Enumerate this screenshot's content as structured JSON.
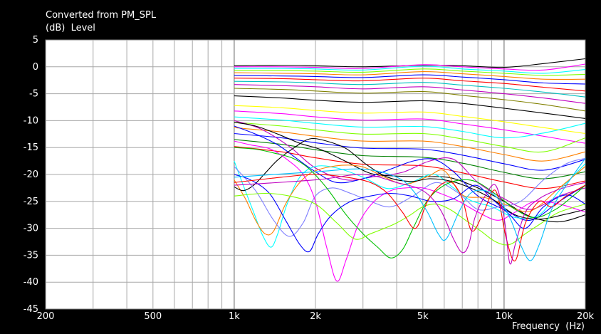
{
  "chart_data": {
    "type": "line",
    "title": "Converted from PM_SPL",
    "ylabel": "(dB)  Level",
    "xlabel": "Frequency  (Hz)",
    "x_scale": "log",
    "xlim": [
      200,
      20000
    ],
    "ylim": [
      -45,
      5
    ],
    "x_ticks": [
      200,
      500,
      1000,
      2000,
      5000,
      10000,
      20000
    ],
    "x_tick_labels": [
      "200",
      "500",
      "1k",
      "2k",
      "5k",
      "10k",
      "20k"
    ],
    "y_ticks": [
      5,
      0,
      -5,
      -10,
      -15,
      -20,
      -25,
      -30,
      -35,
      -40,
      -45
    ],
    "y_tick_labels": [
      "5",
      "0",
      "-5",
      "-10",
      "-15",
      "-20",
      "-25",
      "-30",
      "-35",
      "-40",
      "-45"
    ],
    "grid": true,
    "series": [
      {
        "color": "#000000",
        "x": [
          1000,
          1500,
          2000,
          3000,
          5000,
          7000,
          10000,
          14000,
          20000
        ],
        "y": [
          0.2,
          0.3,
          0.2,
          0,
          0.3,
          0.2,
          -0.1,
          0.6,
          1.5
        ]
      },
      {
        "color": "#ff00ff",
        "x": [
          1000,
          1500,
          2000,
          3000,
          5000,
          7000,
          10000,
          14000,
          20000
        ],
        "y": [
          0,
          0,
          -0.1,
          -0.3,
          0.4,
          0,
          -0.4,
          -0.6,
          0.5
        ]
      },
      {
        "color": "#00ffff",
        "x": [
          1000,
          1500,
          2000,
          3000,
          5000,
          7000,
          10000,
          14000,
          20000
        ],
        "y": [
          -0.3,
          -0.3,
          -0.4,
          -0.6,
          0.1,
          -0.4,
          -0.8,
          -1.2,
          -0.5
        ]
      },
      {
        "color": "#80ff00",
        "x": [
          1000,
          1500,
          2000,
          3000,
          5000,
          7000,
          10000,
          14000,
          20000
        ],
        "y": [
          -0.7,
          -0.7,
          -0.8,
          -1,
          -0.4,
          -0.8,
          -1.2,
          -1.6,
          -1.4
        ]
      },
      {
        "color": "#ff8000",
        "x": [
          1000,
          1500,
          2000,
          3000,
          5000,
          7000,
          10000,
          14000,
          20000
        ],
        "y": [
          -1.1,
          -1.2,
          -1.3,
          -1.5,
          -0.9,
          -1.3,
          -1.8,
          -2.3,
          -2.3
        ]
      },
      {
        "color": "#0000ff",
        "x": [
          1000,
          1500,
          2000,
          3000,
          5000,
          7000,
          10000,
          14000,
          20000
        ],
        "y": [
          -1.6,
          -1.7,
          -1.8,
          -2,
          -1.5,
          -1.9,
          -2.4,
          -3,
          -3.2
        ]
      },
      {
        "color": "#ff0000",
        "x": [
          1000,
          1500,
          2000,
          3000,
          5000,
          7000,
          10000,
          14000,
          20000
        ],
        "y": [
          -2.1,
          -2.2,
          -2.4,
          -2.6,
          -2.1,
          -2.6,
          -3.1,
          -3.8,
          -4.5
        ]
      },
      {
        "color": "#00c0c0",
        "x": [
          1000,
          1500,
          2000,
          3000,
          5000,
          7000,
          10000,
          14000,
          20000
        ],
        "y": [
          -2.7,
          -2.8,
          -3,
          -3.3,
          -2.9,
          -3.4,
          -4,
          -4.7,
          -5.6
        ]
      },
      {
        "color": "#c000c0",
        "x": [
          1000,
          1500,
          2000,
          3000,
          5000,
          7000,
          10000,
          14000,
          20000
        ],
        "y": [
          -3.3,
          -3.5,
          -3.7,
          -4.1,
          -3.7,
          -4.3,
          -5,
          -5.8,
          -6.8
        ]
      },
      {
        "color": "#808000",
        "x": [
          1000,
          1500,
          2000,
          3000,
          5000,
          7000,
          10000,
          14000,
          20000
        ],
        "y": [
          -4,
          -4.2,
          -4.5,
          -4.9,
          -4.6,
          -5.3,
          -6.1,
          -7,
          -8.2
        ]
      },
      {
        "color": "#000000",
        "x": [
          1000,
          1500,
          2000,
          3000,
          5000,
          7000,
          10000,
          14000,
          20000
        ],
        "y": [
          -5.4,
          -5.8,
          -6.2,
          -6.6,
          -6.3,
          -6.8,
          -7.7,
          -8.6,
          -9.6
        ]
      },
      {
        "color": "#ffff00",
        "x": [
          1000,
          1500,
          2000,
          3000,
          5000,
          7000,
          10000,
          14000,
          20000
        ],
        "y": [
          -7.2,
          -7.6,
          -8.1,
          -8.6,
          -8.4,
          -9.2,
          -10.2,
          -11.3,
          -12.4
        ]
      },
      {
        "color": "#ff00ff",
        "x": [
          1000,
          1500,
          2000,
          3000,
          5000,
          7000,
          10000,
          14000,
          20000
        ],
        "y": [
          -8.2,
          -8.7,
          -9.3,
          -9.9,
          -9.7,
          -10.6,
          -11.7,
          -12.9,
          -14.2
        ]
      },
      {
        "color": "#00ffff",
        "x": [
          1000,
          1500,
          2000,
          3000,
          5000,
          7000,
          10000,
          14000,
          20000
        ],
        "y": [
          -9.3,
          -9.9,
          -10.5,
          -11.2,
          -11.1,
          -12,
          -13.2,
          -12.3,
          -10.5
        ]
      },
      {
        "color": "#80ff00",
        "x": [
          1000,
          1500,
          2000,
          3000,
          5000,
          7000,
          10000,
          14000,
          20000
        ],
        "y": [
          -10.3,
          -11,
          -11.7,
          -12.5,
          -12.4,
          -13.4,
          -14.8,
          -15.8,
          -13.2
        ]
      },
      {
        "color": "#ff8000",
        "x": [
          1000,
          1500,
          2000,
          3000,
          5000,
          7000,
          10000,
          14000,
          20000
        ],
        "y": [
          -11.3,
          -12.1,
          -12.9,
          -13.8,
          -13.8,
          -14.8,
          -16.3,
          -17.5,
          -15.8
        ]
      },
      {
        "color": "#0000ff",
        "x": [
          1000,
          1500,
          2000,
          3000,
          5000,
          7000,
          10000,
          14000,
          20000
        ],
        "y": [
          -12.4,
          -13.2,
          -14.1,
          -15.1,
          -15.3,
          -16.4,
          -18,
          -19.2,
          -17.2
        ]
      },
      {
        "color": "#008000",
        "x": [
          1000,
          1500,
          2000,
          3000,
          5000,
          7000,
          10000,
          14000,
          20000
        ],
        "y": [
          -13.5,
          -14.4,
          -15.4,
          -16.5,
          -16.8,
          -17.9,
          -19.6,
          -20.8,
          -19.5
        ]
      },
      {
        "color": "#ff0000",
        "x": [
          1000,
          1500,
          2000,
          3000,
          5000,
          7000,
          10000,
          14000,
          20000
        ],
        "y": [
          -14.8,
          -15.8,
          -16.9,
          -18.1,
          -18.4,
          -19.7,
          -21.4,
          -22.6,
          -21.2
        ]
      },
      {
        "color": "#c000c0",
        "x": [
          1000,
          1250,
          1600,
          2000,
          2600,
          3300,
          4200,
          5300,
          6500,
          8000,
          10000,
          12500,
          16000,
          20000
        ],
        "y": [
          -10,
          -11.5,
          -14.8,
          -18.8,
          -21,
          -20.4,
          -19.6,
          -17.5,
          -17.2,
          -21.5,
          -24.5,
          -26.5,
          -24,
          -22.5
        ]
      },
      {
        "color": "#000000",
        "x": [
          1000,
          1200,
          1450,
          1750,
          2100,
          2600,
          3200,
          4000,
          5000,
          6300,
          8000,
          10000,
          12500,
          16000,
          20000
        ],
        "y": [
          -10.3,
          -11,
          -12.5,
          -14.2,
          -15.4,
          -17.6,
          -19.8,
          -20.3,
          -20.4,
          -20.6,
          -22.5,
          -25,
          -27.8,
          -28.8,
          -27.5
        ]
      },
      {
        "color": "#0000ff",
        "x": [
          1000,
          1200,
          1450,
          1700,
          2000,
          2400,
          3000,
          3800,
          4600,
          5500,
          6500,
          8000,
          10000,
          12500,
          16000,
          20000
        ],
        "y": [
          -11,
          -12.5,
          -14.5,
          -17,
          -19.5,
          -21.5,
          -20.8,
          -19,
          -17.5,
          -17.2,
          -19.5,
          -24,
          -26.5,
          -28.5,
          -25,
          -22
        ]
      },
      {
        "color": "#00ffff",
        "x": [
          1000,
          1080,
          1180,
          1280,
          1370,
          1450,
          1570,
          1750,
          2000,
          2400,
          3000,
          3700,
          4500,
          5500,
          6500,
          7500,
          9000,
          11000,
          13500,
          16000,
          20000
        ],
        "y": [
          -17.5,
          -22,
          -27,
          -31.5,
          -33.5,
          -31,
          -25.5,
          -20.5,
          -18.5,
          -18.8,
          -20.5,
          -22.6,
          -21.5,
          -20,
          -22.5,
          -24.8,
          -26,
          -28,
          -27.5,
          -23,
          -18
        ]
      },
      {
        "color": "#ff8000",
        "x": [
          1000,
          1100,
          1200,
          1300,
          1400,
          1550,
          1750,
          2000,
          2500,
          3000,
          3600,
          4300,
          5200,
          6000,
          7000,
          8500,
          10000,
          12500,
          16000,
          20000
        ],
        "y": [
          -21,
          -24.5,
          -28.5,
          -31,
          -30.5,
          -25.5,
          -21.5,
          -19.3,
          -18.3,
          -18.6,
          -20.5,
          -21.8,
          -20.4,
          -19.3,
          -23.8,
          -24.3,
          -25.5,
          -26.8,
          -22.5,
          -18.5
        ]
      },
      {
        "color": "#000000",
        "x": [
          1000,
          1080,
          1180,
          1300,
          1450,
          1650,
          1900,
          2200,
          2600,
          3100,
          3700,
          4500,
          5300,
          6300,
          7500,
          9000,
          11000,
          13500,
          16500,
          20000
        ],
        "y": [
          -22.3,
          -23,
          -22,
          -19.8,
          -17.3,
          -15.2,
          -13.4,
          -13.8,
          -15.2,
          -18.2,
          -20.5,
          -21.3,
          -20.8,
          -21.2,
          -22.5,
          -24.5,
          -27.5,
          -28.3,
          -27.5,
          -26.5
        ]
      },
      {
        "color": "#8080ff",
        "x": [
          1000,
          1200,
          1400,
          1600,
          1800,
          2000,
          2300,
          2700,
          3200,
          3800,
          4600,
          5600,
          6800,
          8000,
          9500,
          11500,
          14000,
          17000,
          20000
        ],
        "y": [
          -18.5,
          -23,
          -28.5,
          -31.5,
          -29,
          -24,
          -22.5,
          -23.5,
          -25,
          -26,
          -24,
          -21.5,
          -23.5,
          -26.5,
          -26,
          -25,
          -21,
          -18,
          -17
        ]
      },
      {
        "color": "#ff00ff",
        "x": [
          1000,
          1150,
          1350,
          1550,
          1800,
          2000,
          2200,
          2400,
          2600,
          2900,
          3300,
          3800,
          4300,
          5000,
          5800,
          6800,
          8000,
          9500,
          11000,
          13000,
          16000,
          20000
        ],
        "y": [
          -13.8,
          -14.5,
          -15.2,
          -17,
          -20,
          -25,
          -33.5,
          -39.8,
          -35.8,
          -29,
          -25,
          -23,
          -22.5,
          -22.5,
          -23.5,
          -25,
          -27,
          -28.5,
          -27,
          -25,
          -25.5,
          -27
        ]
      },
      {
        "color": "#00c000",
        "x": [
          1000,
          1200,
          1400,
          1650,
          1900,
          2200,
          2600,
          3000,
          3400,
          3800,
          4200,
          4600,
          5200,
          6000,
          7000,
          8000,
          9500,
          11000,
          13000,
          15500,
          18000,
          20000
        ],
        "y": [
          -15,
          -15.3,
          -16,
          -17,
          -19,
          -22.5,
          -27.5,
          -31,
          -33.5,
          -35.5,
          -34,
          -30,
          -24.8,
          -22,
          -21,
          -21.5,
          -24,
          -26.5,
          -28,
          -26.5,
          -24,
          -22
        ]
      },
      {
        "color": "#0000ff",
        "x": [
          1000,
          1150,
          1350,
          1550,
          1750,
          1900,
          2050,
          2300,
          2700,
          3200,
          3800,
          4500,
          5400,
          6500,
          7800,
          9000,
          10500,
          12000,
          14000,
          17000,
          20000
        ],
        "y": [
          -20,
          -21,
          -23.5,
          -28.5,
          -33,
          -34.3,
          -31,
          -27.5,
          -25,
          -24,
          -23.5,
          -24,
          -25,
          -24.5,
          -22,
          -24.5,
          -27.5,
          -30,
          -26,
          -23.8,
          -25.5
        ]
      },
      {
        "color": "#80ff00",
        "x": [
          1000,
          1300,
          1600,
          2000,
          2400,
          2800,
          3200,
          3600,
          4000,
          4500,
          5000,
          5600,
          6300,
          7200,
          8200,
          9300,
          10500,
          12000,
          13800,
          16000,
          20000
        ],
        "y": [
          -24,
          -23.5,
          -24,
          -25.5,
          -29,
          -32,
          -31,
          -30,
          -29,
          -27.5,
          -26,
          -25.5,
          -26.5,
          -28.5,
          -30.5,
          -32.5,
          -33,
          -31,
          -29,
          -27,
          -25.5
        ]
      },
      {
        "color": "#ff0000",
        "x": [
          1000,
          1500,
          2000,
          2600,
          3200,
          3700,
          4200,
          4700,
          5200,
          5800,
          6400,
          7000,
          7600,
          8400,
          9300,
          10200,
          11000,
          12000,
          13500,
          15000,
          17000,
          20000
        ],
        "y": [
          -21.5,
          -20.5,
          -20,
          -20.5,
          -21.5,
          -23.5,
          -27,
          -30,
          -25,
          -22,
          -21.5,
          -24.5,
          -30.5,
          -27,
          -23,
          -32,
          -36,
          -29,
          -25,
          -26,
          -24,
          -22
        ]
      },
      {
        "color": "#c000c0",
        "x": [
          1000,
          2000,
          3000,
          4000,
          5000,
          5800,
          6500,
          7000,
          7400,
          7800,
          8500,
          9300,
          10000,
          10500,
          11000,
          12000,
          13500,
          15500,
          18000,
          20000
        ],
        "y": [
          -22,
          -21,
          -20,
          -21.5,
          -23,
          -26.5,
          -32,
          -34.5,
          -33,
          -28,
          -24,
          -22,
          -28,
          -36.5,
          -33,
          -27,
          -24.5,
          -23,
          -22,
          -21.5
        ]
      },
      {
        "color": "#00c0ff",
        "x": [
          1000,
          2000,
          3000,
          4000,
          4600,
          5200,
          5700,
          6100,
          6800,
          7500,
          8500,
          9500,
          10500,
          11500,
          12500,
          13500,
          15000,
          17000,
          20000
        ],
        "y": [
          -20.5,
          -19.5,
          -19,
          -20.5,
          -23,
          -27,
          -31,
          -32,
          -27,
          -23.5,
          -23,
          -24.5,
          -28,
          -33,
          -36,
          -33,
          -26.5,
          -22,
          -17
        ]
      }
    ]
  }
}
